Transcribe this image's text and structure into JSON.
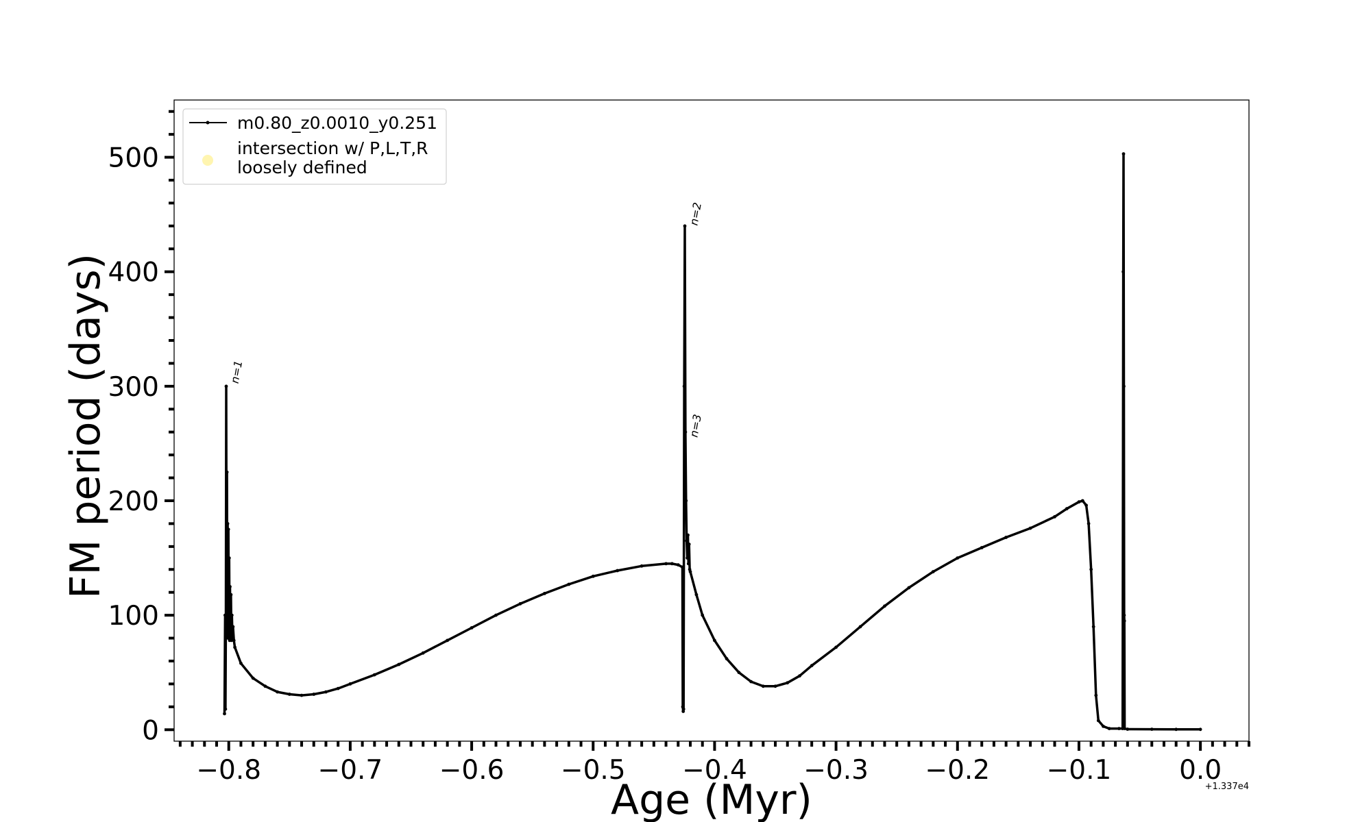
{
  "chart_data": {
    "type": "line",
    "xlabel": "Age (Myr)",
    "ylabel": "FM period (days)",
    "x_offset_label": "+1.337e4",
    "xlim": [
      -0.845,
      0.04
    ],
    "ylim": [
      -10,
      550
    ],
    "x_ticks": [
      -0.8,
      -0.7,
      -0.6,
      -0.5,
      -0.4,
      -0.3,
      -0.2,
      -0.1,
      0.0
    ],
    "x_tick_labels": [
      "−0.8",
      "−0.7",
      "−0.6",
      "−0.5",
      "−0.4",
      "−0.3",
      "−0.2",
      "−0.1",
      "0.0"
    ],
    "y_ticks": [
      0,
      100,
      200,
      300,
      400,
      500
    ],
    "y_tick_labels": [
      "0",
      "100",
      "200",
      "300",
      "400",
      "500"
    ],
    "grid": false,
    "legend_position": "top-left",
    "legend": [
      {
        "label": "m0.80_z0.0010_y0.251",
        "marker": "line-dot",
        "color": "#000000"
      },
      {
        "label_lines": [
          "intersection w/ P,L,T,R",
          "loosely defined"
        ],
        "marker": "circle",
        "color": "#fff5b0"
      }
    ],
    "annotations": [
      {
        "text": "n=1",
        "x": -0.799,
        "y": 302
      },
      {
        "text": "n=2",
        "x": -0.421,
        "y": 440
      },
      {
        "text": "n=3",
        "x": -0.421,
        "y": 255
      }
    ],
    "series": [
      {
        "name": "m0.80_z0.0010_y0.251",
        "color": "#000000",
        "points": [
          [
            -0.8035,
            14
          ],
          [
            -0.803,
            100
          ],
          [
            -0.8027,
            18
          ],
          [
            -0.8024,
            95
          ],
          [
            -0.8021,
            300
          ],
          [
            -0.8018,
            120
          ],
          [
            -0.8015,
            225
          ],
          [
            -0.8012,
            85
          ],
          [
            -0.8009,
            180
          ],
          [
            -0.8006,
            80
          ],
          [
            -0.8003,
            175
          ],
          [
            -0.8,
            95
          ],
          [
            -0.7997,
            150
          ],
          [
            -0.7993,
            78
          ],
          [
            -0.799,
            125
          ],
          [
            -0.7986,
            80
          ],
          [
            -0.7982,
            118
          ],
          [
            -0.7978,
            78
          ],
          [
            -0.7974,
            100
          ],
          [
            -0.797,
            82
          ],
          [
            -0.7965,
            90
          ],
          [
            -0.7958,
            78
          ],
          [
            -0.795,
            72
          ],
          [
            -0.79,
            58
          ],
          [
            -0.78,
            45
          ],
          [
            -0.77,
            38
          ],
          [
            -0.76,
            33
          ],
          [
            -0.75,
            31
          ],
          [
            -0.74,
            30
          ],
          [
            -0.73,
            31
          ],
          [
            -0.72,
            33
          ],
          [
            -0.71,
            36
          ],
          [
            -0.7,
            40
          ],
          [
            -0.68,
            48
          ],
          [
            -0.66,
            57
          ],
          [
            -0.64,
            67
          ],
          [
            -0.62,
            78
          ],
          [
            -0.6,
            89
          ],
          [
            -0.58,
            100
          ],
          [
            -0.56,
            110
          ],
          [
            -0.54,
            119
          ],
          [
            -0.52,
            127
          ],
          [
            -0.5,
            134
          ],
          [
            -0.48,
            139
          ],
          [
            -0.46,
            143
          ],
          [
            -0.44,
            145
          ],
          [
            -0.435,
            145
          ],
          [
            -0.43,
            144
          ],
          [
            -0.4265,
            142
          ],
          [
            -0.4262,
            20
          ],
          [
            -0.4258,
            16
          ],
          [
            -0.4255,
            18
          ],
          [
            -0.425,
            300
          ],
          [
            -0.4245,
            440
          ],
          [
            -0.424,
            260
          ],
          [
            -0.4235,
            200
          ],
          [
            -0.423,
            165
          ],
          [
            -0.4225,
            150
          ],
          [
            -0.422,
            170
          ],
          [
            -0.4215,
            145
          ],
          [
            -0.421,
            162
          ],
          [
            -0.4205,
            140
          ],
          [
            -0.42,
            138
          ],
          [
            -0.415,
            118
          ],
          [
            -0.41,
            100
          ],
          [
            -0.4,
            78
          ],
          [
            -0.39,
            62
          ],
          [
            -0.38,
            50
          ],
          [
            -0.37,
            42
          ],
          [
            -0.36,
            38
          ],
          [
            -0.35,
            38
          ],
          [
            -0.34,
            41
          ],
          [
            -0.33,
            47
          ],
          [
            -0.32,
            56
          ],
          [
            -0.3,
            72
          ],
          [
            -0.28,
            90
          ],
          [
            -0.26,
            108
          ],
          [
            -0.24,
            124
          ],
          [
            -0.22,
            138
          ],
          [
            -0.2,
            150
          ],
          [
            -0.18,
            159
          ],
          [
            -0.16,
            168
          ],
          [
            -0.14,
            176
          ],
          [
            -0.12,
            186
          ],
          [
            -0.11,
            193
          ],
          [
            -0.1,
            199
          ],
          [
            -0.097,
            200
          ],
          [
            -0.094,
            196
          ],
          [
            -0.092,
            180
          ],
          [
            -0.09,
            140
          ],
          [
            -0.088,
            90
          ],
          [
            -0.086,
            30
          ],
          [
            -0.084,
            8
          ],
          [
            -0.08,
            3
          ],
          [
            -0.075,
            1
          ],
          [
            -0.067,
            1
          ],
          [
            -0.064,
            1
          ],
          [
            -0.0635,
            400
          ],
          [
            -0.0633,
            503
          ],
          [
            -0.063,
            300
          ],
          [
            -0.0628,
            100
          ],
          [
            -0.0626,
            95
          ],
          [
            -0.0624,
            1
          ],
          [
            -0.06,
            0.5
          ],
          [
            -0.04,
            0.4
          ],
          [
            -0.02,
            0.3
          ],
          [
            0.0,
            0.3
          ]
        ]
      }
    ]
  }
}
